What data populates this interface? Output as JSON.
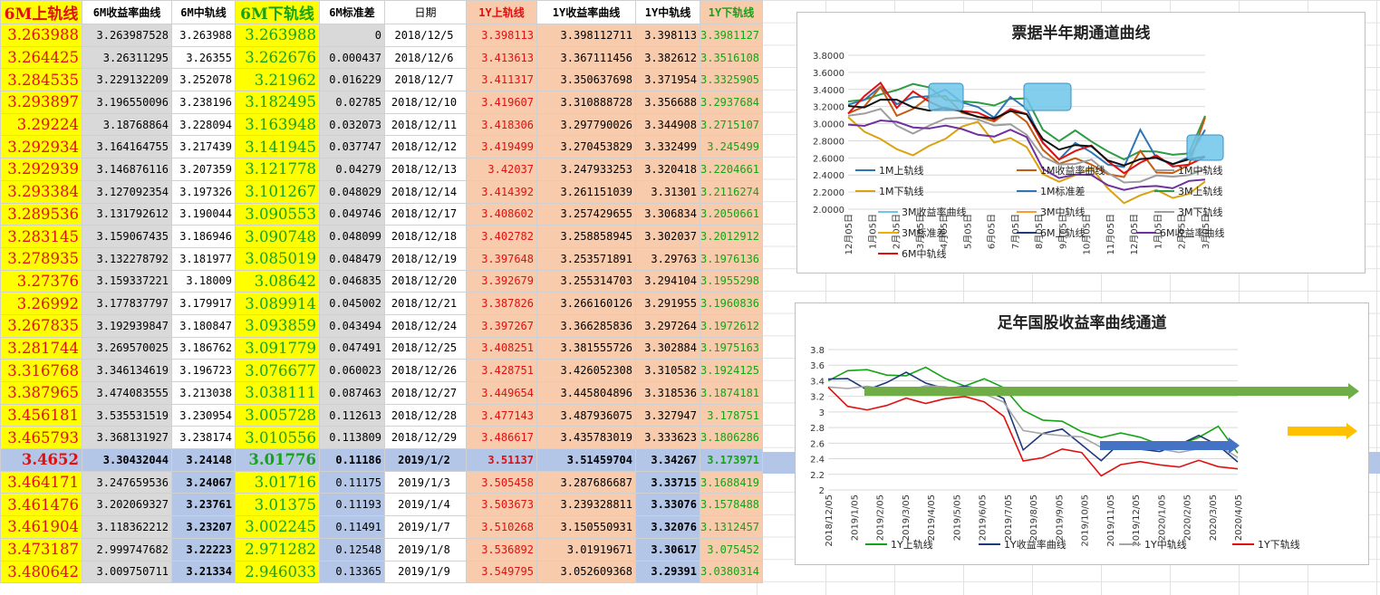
{
  "sheet": {
    "headers": [
      "6M上轨线",
      "6M收益率曲线",
      "6M中轨线",
      "6M下轨线",
      "6M标准差",
      "日期",
      "1Y上轨线",
      "1Y收益率曲线",
      "1Y中轨线",
      "1Y下轨线"
    ],
    "rows": [
      [
        "3.263988",
        "3.263987528",
        "3.263988",
        "3.263988",
        "0",
        "2018/12/5",
        "3.398113",
        "3.398112711",
        "3.398113",
        "3.3981127"
      ],
      [
        "3.264425",
        "3.26311295",
        "3.26355",
        "3.262676",
        "0.000437",
        "2018/12/6",
        "3.413613",
        "3.367111456",
        "3.382612",
        "3.3516108"
      ],
      [
        "3.284535",
        "3.229132209",
        "3.252078",
        "3.21962",
        "0.016229",
        "2018/12/7",
        "3.411317",
        "3.350637698",
        "3.371954",
        "3.3325905"
      ],
      [
        "3.293897",
        "3.196550096",
        "3.238196",
        "3.182495",
        "0.02785",
        "2018/12/10",
        "3.419607",
        "3.310888728",
        "3.356688",
        "3.2937684"
      ],
      [
        "3.29224",
        "3.18768864",
        "3.228094",
        "3.163948",
        "0.032073",
        "2018/12/11",
        "3.418306",
        "3.297790026",
        "3.344908",
        "3.2715107"
      ],
      [
        "3.292934",
        "3.164164755",
        "3.217439",
        "3.141945",
        "0.037747",
        "2018/12/12",
        "3.419499",
        "3.270453829",
        "3.332499",
        "3.245499"
      ],
      [
        "3.292939",
        "3.146876116",
        "3.207359",
        "3.121778",
        "0.04279",
        "2018/12/13",
        "3.42037",
        "3.247933253",
        "3.320418",
        "3.2204661"
      ],
      [
        "3.293384",
        "3.127092354",
        "3.197326",
        "3.101267",
        "0.048029",
        "2018/12/14",
        "3.414392",
        "3.261151039",
        "3.31301",
        "3.2116274"
      ],
      [
        "3.289536",
        "3.131792612",
        "3.190044",
        "3.090553",
        "0.049746",
        "2018/12/17",
        "3.408602",
        "3.257429655",
        "3.306834",
        "3.2050661"
      ],
      [
        "3.283145",
        "3.159067435",
        "3.186946",
        "3.090748",
        "0.048099",
        "2018/12/18",
        "3.402782",
        "3.258858945",
        "3.302037",
        "3.2012912"
      ],
      [
        "3.278935",
        "3.132278792",
        "3.181977",
        "3.085019",
        "0.048479",
        "2018/12/19",
        "3.397648",
        "3.253571891",
        "3.29763",
        "3.1976136"
      ],
      [
        "3.27376",
        "3.159337221",
        "3.18009",
        "3.08642",
        "0.046835",
        "2018/12/20",
        "3.392679",
        "3.255314703",
        "3.294104",
        "3.1955298"
      ],
      [
        "3.26992",
        "3.177837797",
        "3.179917",
        "3.089914",
        "0.045002",
        "2018/12/21",
        "3.387826",
        "3.266160126",
        "3.291955",
        "3.1960836"
      ],
      [
        "3.267835",
        "3.192939847",
        "3.180847",
        "3.093859",
        "0.043494",
        "2018/12/24",
        "3.397267",
        "3.366285836",
        "3.297264",
        "3.1972612"
      ],
      [
        "3.281744",
        "3.269570025",
        "3.186762",
        "3.091779",
        "0.047491",
        "2018/12/25",
        "3.408251",
        "3.381555726",
        "3.302884",
        "3.1975163"
      ],
      [
        "3.316768",
        "3.346134619",
        "3.196723",
        "3.076677",
        "0.060023",
        "2018/12/26",
        "3.428751",
        "3.426052308",
        "3.310582",
        "3.1924125"
      ],
      [
        "3.387965",
        "3.474083555",
        "3.213038",
        "3.038111",
        "0.087463",
        "2018/12/27",
        "3.449654",
        "3.445804896",
        "3.318536",
        "3.1874181"
      ],
      [
        "3.456181",
        "3.535531519",
        "3.230954",
        "3.005728",
        "0.112613",
        "2018/12/28",
        "3.477143",
        "3.487936075",
        "3.327947",
        "3.178751"
      ],
      [
        "3.465793",
        "3.368131927",
        "3.238174",
        "3.010556",
        "0.113809",
        "2018/12/29",
        "3.486617",
        "3.435783019",
        "3.333623",
        "3.1806286"
      ],
      [
        "3.4652",
        "3.30432044",
        "3.24148",
        "3.01776",
        "0.11186",
        "2019/1/2",
        "3.51137",
        "3.51459704",
        "3.34267",
        "3.173971"
      ],
      [
        "3.464171",
        "3.247659536",
        "3.24067",
        "3.01716",
        "0.11175",
        "2019/1/3",
        "3.505458",
        "3.287686687",
        "3.33715",
        "3.1688419"
      ],
      [
        "3.461476",
        "3.202069327",
        "3.23761",
        "3.01375",
        "0.11193",
        "2019/1/4",
        "3.503673",
        "3.239328811",
        "3.33076",
        "3.1578488"
      ],
      [
        "3.461904",
        "3.118362212",
        "3.23207",
        "3.002245",
        "0.11491",
        "2019/1/7",
        "3.510268",
        "3.150550931",
        "3.32076",
        "3.1312457"
      ],
      [
        "3.473187",
        "2.999747682",
        "3.22223",
        "2.971282",
        "0.12548",
        "2019/1/8",
        "3.536892",
        "3.01919671",
        "3.30617",
        "3.075452"
      ],
      [
        "3.480642",
        "3.009750711",
        "3.21334",
        "2.946033",
        "0.13365",
        "2019/1/9",
        "3.549795",
        "3.052609368",
        "3.29391",
        "3.0380314"
      ]
    ]
  },
  "chart_data": [
    {
      "type": "line",
      "title": "票据半年期通道曲线",
      "ylim": [
        2.0,
        3.8
      ],
      "yticks": [
        "3.8000",
        "3.6000",
        "3.4000",
        "3.2000",
        "3.0000",
        "2.8000",
        "2.6000",
        "2.4000",
        "2.2000",
        "2.0000"
      ],
      "x_ticks": [
        "12月05日",
        "1月05日",
        "2月05日",
        "3月05日",
        "4月05日",
        "5月05日",
        "6月05日",
        "7月05日",
        "8月05日",
        "9月05日",
        "10月05日",
        "11月05日",
        "12月05日",
        "1月05日",
        "2月05日",
        "3月05日"
      ],
      "grid": true,
      "legend": "bottom",
      "legend_entries": [
        "1M上轨线",
        "1M收益率曲线",
        "1M中轨线",
        "1M下轨线",
        "1M标准差",
        "3M上轨线",
        "3M收益率曲线",
        "3M中轨线",
        "3M下轨线",
        "3M标准差",
        "6M上轨线",
        "6M收益率曲线",
        "6M中轨线"
      ],
      "series": [
        {
          "name": "3M上轨线",
          "color": "#2e9b45",
          "values": [
            3.26,
            3.25,
            3.35,
            3.42,
            3.45,
            3.4,
            3.3,
            3.28,
            3.22,
            3.2,
            3.32,
            3.3,
            2.9,
            2.8,
            2.95,
            2.78,
            2.65,
            2.6,
            2.7,
            2.65,
            2.62,
            2.68,
            3.1
          ]
        },
        {
          "name": "1M上轨线",
          "color": "#2e75b6",
          "values": [
            3.2,
            3.3,
            3.45,
            3.2,
            3.3,
            3.35,
            3.4,
            3.22,
            3.2,
            3.1,
            3.3,
            3.15,
            2.8,
            2.6,
            2.75,
            2.65,
            2.55,
            2.5,
            2.9,
            2.6,
            2.55,
            2.6,
            2.9
          ]
        },
        {
          "name": "1M收益率曲线",
          "color": "#c55a11",
          "values": [
            3.15,
            3.2,
            3.4,
            3.1,
            3.2,
            3.3,
            3.3,
            3.15,
            3.1,
            3.0,
            3.15,
            3.05,
            2.7,
            2.5,
            2.6,
            2.55,
            2.4,
            2.35,
            2.7,
            2.45,
            2.4,
            2.5,
            3.1
          ]
        },
        {
          "name": "6M收益率曲线",
          "color": "#e01010",
          "values": [
            3.1,
            3.3,
            3.5,
            3.2,
            3.35,
            3.25,
            3.2,
            3.15,
            3.1,
            3.05,
            3.2,
            3.1,
            2.75,
            2.6,
            2.7,
            2.72,
            2.55,
            2.45,
            2.55,
            2.6,
            2.5,
            2.55,
            2.6
          ]
        },
        {
          "name": "6M中轨线",
          "color": "#111111",
          "values": [
            3.2,
            3.22,
            3.28,
            3.25,
            3.2,
            3.18,
            3.17,
            3.12,
            3.1,
            3.08,
            3.12,
            3.1,
            2.85,
            2.7,
            2.72,
            2.74,
            2.6,
            2.5,
            2.56,
            2.62,
            2.55,
            2.56,
            2.6
          ]
        },
        {
          "name": "1M中轨线",
          "color": "#9e9e9e",
          "values": [
            3.12,
            3.1,
            3.15,
            3.0,
            2.9,
            2.95,
            3.05,
            3.1,
            3.05,
            2.95,
            3.0,
            2.9,
            2.6,
            2.5,
            2.55,
            2.6,
            2.4,
            2.3,
            2.35,
            2.4,
            2.35,
            2.4,
            2.5
          ]
        },
        {
          "name": "1M下轨线",
          "color": "#dba20f",
          "values": [
            3.05,
            2.9,
            2.85,
            2.7,
            2.6,
            2.75,
            2.85,
            2.95,
            3.0,
            2.8,
            2.85,
            2.7,
            2.4,
            2.35,
            2.4,
            2.45,
            2.25,
            2.1,
            2.15,
            2.2,
            2.15,
            2.2,
            2.3
          ]
        },
        {
          "name": "6M下轨线",
          "color": "#7030a0",
          "values": [
            3.0,
            3.0,
            3.02,
            3.0,
            2.98,
            2.96,
            2.95,
            2.93,
            2.9,
            2.85,
            2.9,
            2.85,
            2.5,
            2.35,
            2.38,
            2.42,
            2.3,
            2.2,
            2.25,
            2.3,
            2.25,
            2.3,
            2.35
          ]
        }
      ]
    },
    {
      "type": "line",
      "title": "足年国股收益率曲线通道",
      "ylim": [
        2.0,
        3.8
      ],
      "yticks": [
        "3.8",
        "3.6",
        "3.4",
        "3.2",
        "3",
        "2.8",
        "2.6",
        "2.4",
        "2.2",
        "2"
      ],
      "x_ticks": [
        "2018/12/05",
        "2019/1/05",
        "2019/2/05",
        "2019/3/05",
        "2019/4/05",
        "2019/5/05",
        "2019/6/05",
        "2019/7/05",
        "2019/8/05",
        "2019/9/05",
        "2019/10/05",
        "2019/11/05",
        "2019/12/05",
        "2020/1/05",
        "2020/2/05",
        "2020/3/05",
        "2020/4/05"
      ],
      "grid": true,
      "legend": "bottom",
      "legend_entries": [
        "1Y上轨线",
        "1Y收益率曲线",
        "1Y中轨线",
        "1Y下轨线"
      ],
      "series": [
        {
          "name": "1Y上轨线",
          "color": "#16a316",
          "values": [
            3.4,
            3.5,
            3.55,
            3.5,
            3.45,
            3.55,
            3.45,
            3.35,
            3.4,
            3.3,
            3.05,
            2.9,
            2.85,
            2.75,
            2.7,
            2.72,
            2.65,
            2.6,
            2.6,
            2.65,
            2.8,
            2.5
          ]
        },
        {
          "name": "1Y收益率曲线",
          "color": "#1f3a7a",
          "values": [
            3.4,
            3.45,
            3.3,
            3.35,
            3.5,
            3.4,
            3.3,
            3.3,
            3.3,
            3.2,
            2.5,
            2.7,
            2.8,
            2.6,
            2.35,
            2.6,
            2.55,
            2.5,
            2.55,
            2.7,
            2.6,
            2.35
          ]
        },
        {
          "name": "1Y中轨线",
          "color": "#a6a6a6",
          "values": [
            3.35,
            3.3,
            3.3,
            3.3,
            3.3,
            3.32,
            3.3,
            3.3,
            3.25,
            3.1,
            2.75,
            2.75,
            2.7,
            2.65,
            2.55,
            2.55,
            2.55,
            2.5,
            2.5,
            2.55,
            2.55,
            2.4
          ]
        },
        {
          "name": "1Y下轨线",
          "color": "#e01010",
          "values": [
            3.3,
            3.05,
            3.05,
            3.1,
            3.15,
            3.1,
            3.2,
            3.2,
            3.1,
            2.95,
            2.4,
            2.4,
            2.5,
            2.5,
            2.2,
            2.3,
            2.35,
            2.35,
            2.3,
            2.35,
            2.3,
            2.3
          ]
        }
      ]
    }
  ]
}
